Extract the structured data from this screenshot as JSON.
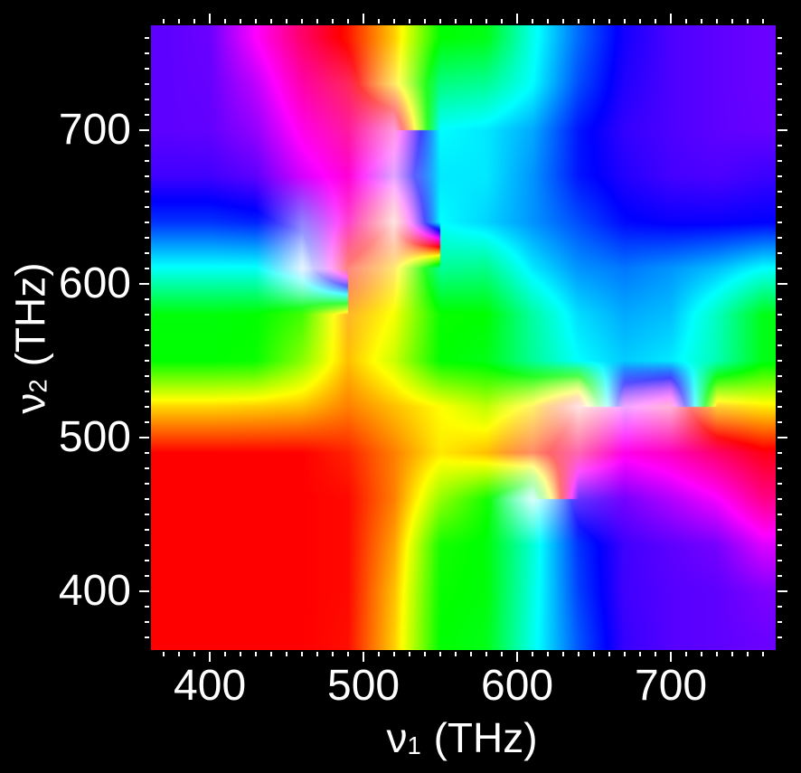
{
  "figure": {
    "background": "#000000",
    "foreground": "#ffffff"
  },
  "chart_data": {
    "type": "heatmap",
    "title": "",
    "xlabel": "ν₁ (THz)",
    "ylabel": "ν₂ (THz)",
    "xlim": [
      361.7,
      768.2
    ],
    "ylim": [
      361.8,
      768.2
    ],
    "colormap": "hsv",
    "grid_lines": false,
    "legend": null,
    "axes": {
      "x": {
        "symbol": "ν",
        "subscript": "1",
        "unit": "(THz)",
        "major_ticks": [
          400,
          500,
          600,
          700
        ],
        "tick_labels": [
          "400",
          "500",
          "600",
          "700"
        ],
        "minor_step": 10
      },
      "y": {
        "symbol": "ν",
        "subscript": "2",
        "unit": "(THz)",
        "major_ticks": [
          400,
          500,
          600,
          700
        ],
        "tick_labels": [
          "400",
          "500",
          "600",
          "700"
        ],
        "minor_step": 10
      }
    },
    "grid": {
      "x": [
        370,
        400,
        430,
        460,
        490,
        520,
        550,
        580,
        610,
        640,
        670,
        700,
        730,
        760
      ],
      "y": [
        760,
        730,
        700,
        670,
        640,
        610,
        580,
        550,
        520,
        490,
        460,
        430,
        400,
        370
      ],
      "hue_deg": [
        [
          262,
          265,
          300,
          335,
          5,
          48,
          120,
          125,
          175,
          215,
          245,
          258,
          262,
          265
        ],
        [
          262,
          264,
          285,
          320,
          345,
          50,
          150,
          155,
          180,
          222,
          248,
          258,
          262,
          265
        ],
        [
          262,
          263,
          275,
          305,
          325,
          320,
          180,
          185,
          200,
          235,
          252,
          258,
          262,
          264
        ],
        [
          255,
          255,
          262,
          290,
          310,
          280,
          185,
          185,
          205,
          235,
          248,
          256,
          258,
          254
        ],
        [
          228,
          228,
          232,
          250,
          315,
          0,
          180,
          190,
          205,
          222,
          238,
          242,
          242,
          240
        ],
        [
          178,
          178,
          178,
          200,
          5,
          50,
          155,
          152,
          185,
          205,
          212,
          205,
          195,
          180
        ],
        [
          122,
          122,
          120,
          105,
          40,
          62,
          118,
          120,
          158,
          188,
          200,
          195,
          165,
          125
        ],
        [
          120,
          120,
          118,
          88,
          45,
          72,
          120,
          125,
          155,
          180,
          192,
          185,
          162,
          125
        ],
        [
          50,
          50,
          48,
          45,
          30,
          45,
          60,
          75,
          55,
          0,
          290,
          330,
          45,
          55
        ],
        [
          0,
          0,
          0,
          0,
          8,
          30,
          55,
          45,
          15,
          330,
          305,
          315,
          335,
          355
        ],
        [
          0,
          0,
          0,
          0,
          2,
          30,
          85,
          115,
          170,
          255,
          268,
          282,
          298,
          328
        ],
        [
          0,
          0,
          0,
          0,
          2,
          38,
          115,
          122,
          170,
          228,
          255,
          262,
          268,
          292
        ],
        [
          0,
          0,
          0,
          0,
          2,
          45,
          118,
          122,
          172,
          225,
          255,
          260,
          262,
          270
        ],
        [
          0,
          0,
          0,
          0,
          3,
          48,
          120,
          125,
          175,
          220,
          253,
          260,
          262,
          265
        ]
      ],
      "saturation": [
        [
          1,
          1,
          1,
          1,
          1,
          1,
          1,
          1,
          1,
          1,
          1,
          1,
          1,
          1
        ],
        [
          1,
          1,
          1,
          1,
          0.85,
          0.6,
          1,
          1,
          1,
          1,
          1,
          1,
          1,
          1
        ],
        [
          1,
          1,
          1,
          1,
          0.9,
          0.4,
          1,
          1,
          1,
          1,
          1,
          1,
          1,
          1
        ],
        [
          1,
          1,
          1,
          1,
          1,
          0.35,
          1,
          1,
          1,
          1,
          1,
          1,
          1,
          1
        ],
        [
          1,
          1,
          1,
          0.5,
          0.75,
          0.1,
          1,
          1,
          1,
          1,
          1,
          1,
          1,
          1
        ],
        [
          1,
          1,
          1,
          0.1,
          0.5,
          0.55,
          1,
          1,
          1,
          1,
          1,
          1,
          1,
          1
        ],
        [
          1,
          1,
          1,
          1,
          0.85,
          1,
          1,
          1,
          1,
          1,
          1,
          1,
          1,
          1
        ],
        [
          1,
          1,
          1,
          1,
          1,
          1,
          1,
          1,
          1,
          1,
          1,
          1,
          1,
          1
        ],
        [
          1,
          1,
          1,
          1,
          1,
          1,
          1,
          1,
          0.6,
          0.1,
          0.35,
          0.3,
          0.8,
          1
        ],
        [
          1,
          1,
          1,
          1,
          1,
          1,
          1,
          1,
          0.6,
          0.6,
          1,
          1,
          1,
          1
        ],
        [
          1,
          1,
          1,
          1,
          1,
          1,
          1,
          1,
          0.15,
          0.8,
          1,
          1,
          1,
          1
        ],
        [
          1,
          1,
          1,
          1,
          1,
          1,
          1,
          1,
          1,
          1,
          1,
          1,
          1,
          1
        ],
        [
          1,
          1,
          1,
          1,
          1,
          1,
          1,
          1,
          1,
          1,
          1,
          1,
          1,
          1
        ],
        [
          1,
          1,
          1,
          1,
          1,
          1,
          1,
          1,
          1,
          1,
          1,
          1,
          1,
          1
        ]
      ]
    },
    "annotations": []
  }
}
